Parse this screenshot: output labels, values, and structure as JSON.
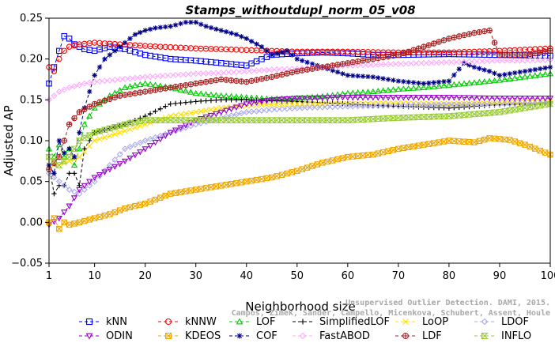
{
  "chart_data": {
    "type": "line",
    "title": "Stamps_withoutdupl_norm_05_v08",
    "xlabel": "Neighborhood size",
    "ylabel": "Adjusted AP",
    "xlim": [
      1,
      100
    ],
    "ylim": [
      -0.05,
      0.25
    ],
    "x_ticks": [
      1,
      10,
      20,
      30,
      40,
      50,
      60,
      70,
      80,
      90,
      100
    ],
    "y_ticks": [
      -0.05,
      0.0,
      0.05,
      0.1,
      0.15,
      0.2,
      0.25
    ],
    "y_tick_labels": [
      "−0.05",
      "0.00",
      "0.05",
      "0.10",
      "0.15",
      "0.20",
      "0.25"
    ],
    "grid": false,
    "legend_position": "bottom",
    "watermark": [
      "Unsupervised Outlier Detection. DAMI, 2015.",
      "Campos, Zimek, Sander, Campello, Micenkova, Schubert, Assent, Houle"
    ],
    "series": [
      {
        "name": "kNN",
        "color": "#0000ff",
        "marker": "square",
        "anchors": [
          [
            1,
            0.17
          ],
          [
            2,
            0.19
          ],
          [
            3,
            0.21
          ],
          [
            4,
            0.228
          ],
          [
            5,
            0.225
          ],
          [
            6,
            0.218
          ],
          [
            8,
            0.212
          ],
          [
            10,
            0.21
          ],
          [
            13,
            0.215
          ],
          [
            16,
            0.212
          ],
          [
            20,
            0.205
          ],
          [
            25,
            0.2
          ],
          [
            30,
            0.198
          ],
          [
            35,
            0.195
          ],
          [
            40,
            0.192
          ],
          [
            45,
            0.205
          ],
          [
            50,
            0.207
          ],
          [
            55,
            0.208
          ],
          [
            60,
            0.207
          ],
          [
            65,
            0.205
          ],
          [
            70,
            0.205
          ],
          [
            80,
            0.206
          ],
          [
            90,
            0.205
          ],
          [
            100,
            0.204
          ]
        ]
      },
      {
        "name": "kNNW",
        "color": "#ff0000",
        "marker": "circle",
        "anchors": [
          [
            1,
            0.19
          ],
          [
            2,
            0.185
          ],
          [
            3,
            0.2
          ],
          [
            4,
            0.21
          ],
          [
            5,
            0.215
          ],
          [
            7,
            0.218
          ],
          [
            10,
            0.22
          ],
          [
            15,
            0.218
          ],
          [
            20,
            0.216
          ],
          [
            30,
            0.213
          ],
          [
            40,
            0.211
          ],
          [
            50,
            0.209
          ],
          [
            60,
            0.209
          ],
          [
            70,
            0.208
          ],
          [
            80,
            0.208
          ],
          [
            90,
            0.21
          ],
          [
            100,
            0.213
          ]
        ]
      },
      {
        "name": "LOF",
        "color": "#00cc00",
        "marker": "triangle",
        "anchors": [
          [
            1,
            0.09
          ],
          [
            2,
            0.08
          ],
          [
            3,
            0.095
          ],
          [
            4,
            0.08
          ],
          [
            5,
            0.09
          ],
          [
            6,
            0.07
          ],
          [
            7,
            0.09
          ],
          [
            8,
            0.12
          ],
          [
            10,
            0.14
          ],
          [
            13,
            0.155
          ],
          [
            16,
            0.165
          ],
          [
            20,
            0.17
          ],
          [
            25,
            0.165
          ],
          [
            30,
            0.158
          ],
          [
            35,
            0.155
          ],
          [
            40,
            0.153
          ],
          [
            45,
            0.151
          ],
          [
            50,
            0.152
          ],
          [
            55,
            0.154
          ],
          [
            60,
            0.158
          ],
          [
            65,
            0.16
          ],
          [
            70,
            0.163
          ],
          [
            75,
            0.165
          ],
          [
            80,
            0.168
          ],
          [
            85,
            0.171
          ],
          [
            90,
            0.174
          ],
          [
            95,
            0.178
          ],
          [
            100,
            0.182
          ]
        ]
      },
      {
        "name": "SimplifiedLOF",
        "color": "#000000",
        "marker": "plus",
        "anchors": [
          [
            1,
            0.07
          ],
          [
            2,
            0.035
          ],
          [
            3,
            0.045
          ],
          [
            4,
            0.045
          ],
          [
            5,
            0.06
          ],
          [
            6,
            0.06
          ],
          [
            7,
            0.045
          ],
          [
            8,
            0.09
          ],
          [
            10,
            0.11
          ],
          [
            13,
            0.115
          ],
          [
            16,
            0.12
          ],
          [
            20,
            0.13
          ],
          [
            25,
            0.145
          ],
          [
            30,
            0.148
          ],
          [
            35,
            0.15
          ],
          [
            40,
            0.15
          ],
          [
            45,
            0.149
          ],
          [
            50,
            0.148
          ],
          [
            60,
            0.145
          ],
          [
            70,
            0.142
          ],
          [
            80,
            0.14
          ],
          [
            90,
            0.144
          ],
          [
            100,
            0.147
          ]
        ]
      },
      {
        "name": "LoOP",
        "color": "#ffdd00",
        "marker": "x",
        "anchors": [
          [
            1,
            0.07
          ],
          [
            3,
            0.07
          ],
          [
            5,
            0.075
          ],
          [
            7,
            0.08
          ],
          [
            10,
            0.1
          ],
          [
            15,
            0.11
          ],
          [
            20,
            0.12
          ],
          [
            25,
            0.13
          ],
          [
            30,
            0.135
          ],
          [
            35,
            0.14
          ],
          [
            40,
            0.143
          ],
          [
            50,
            0.145
          ],
          [
            60,
            0.145
          ],
          [
            70,
            0.146
          ],
          [
            80,
            0.145
          ],
          [
            90,
            0.146
          ],
          [
            100,
            0.148
          ]
        ]
      },
      {
        "name": "LDOF",
        "color": "#aaaaee",
        "marker": "diamond",
        "anchors": [
          [
            1,
            0.06
          ],
          [
            3,
            0.05
          ],
          [
            5,
            0.04
          ],
          [
            7,
            0.035
          ],
          [
            10,
            0.05
          ],
          [
            13,
            0.07
          ],
          [
            16,
            0.09
          ],
          [
            20,
            0.1
          ],
          [
            25,
            0.11
          ],
          [
            30,
            0.12
          ],
          [
            35,
            0.128
          ],
          [
            40,
            0.135
          ],
          [
            45,
            0.138
          ],
          [
            50,
            0.14
          ],
          [
            60,
            0.142
          ],
          [
            70,
            0.143
          ],
          [
            80,
            0.144
          ],
          [
            90,
            0.145
          ],
          [
            100,
            0.146
          ]
        ]
      },
      {
        "name": "ODIN",
        "color": "#9900cc",
        "marker": "triangle-down",
        "anchors": [
          [
            1,
            -0.003
          ],
          [
            3,
            0.005
          ],
          [
            5,
            0.02
          ],
          [
            7,
            0.04
          ],
          [
            10,
            0.055
          ],
          [
            13,
            0.065
          ],
          [
            16,
            0.075
          ],
          [
            20,
            0.09
          ],
          [
            25,
            0.11
          ],
          [
            30,
            0.125
          ],
          [
            35,
            0.135
          ],
          [
            40,
            0.145
          ],
          [
            45,
            0.15
          ],
          [
            50,
            0.152
          ],
          [
            60,
            0.153
          ],
          [
            70,
            0.153
          ],
          [
            80,
            0.153
          ],
          [
            90,
            0.152
          ],
          [
            100,
            0.152
          ]
        ]
      },
      {
        "name": "KDEOS",
        "color": "#f0a800",
        "marker": "square-x",
        "anchors": [
          [
            1,
            0.0
          ],
          [
            2,
            0.005
          ],
          [
            3,
            -0.008
          ],
          [
            4,
            0.0
          ],
          [
            5,
            -0.003
          ],
          [
            7,
            0.0
          ],
          [
            10,
            0.005
          ],
          [
            13,
            0.01
          ],
          [
            16,
            0.017
          ],
          [
            20,
            0.023
          ],
          [
            25,
            0.035
          ],
          [
            30,
            0.04
          ],
          [
            35,
            0.045
          ],
          [
            40,
            0.05
          ],
          [
            45,
            0.055
          ],
          [
            50,
            0.063
          ],
          [
            55,
            0.073
          ],
          [
            60,
            0.08
          ],
          [
            65,
            0.083
          ],
          [
            70,
            0.09
          ],
          [
            75,
            0.095
          ],
          [
            80,
            0.1
          ],
          [
            85,
            0.098
          ],
          [
            88,
            0.103
          ],
          [
            92,
            0.101
          ],
          [
            95,
            0.095
          ],
          [
            100,
            0.083
          ]
        ]
      },
      {
        "name": "COF",
        "color": "#000088",
        "marker": "asterisk",
        "anchors": [
          [
            1,
            0.07
          ],
          [
            2,
            0.06
          ],
          [
            3,
            0.1
          ],
          [
            4,
            0.085
          ],
          [
            5,
            0.09
          ],
          [
            6,
            0.08
          ],
          [
            8,
            0.14
          ],
          [
            10,
            0.18
          ],
          [
            12,
            0.2
          ],
          [
            14,
            0.21
          ],
          [
            16,
            0.22
          ],
          [
            18,
            0.23
          ],
          [
            20,
            0.235
          ],
          [
            22,
            0.238
          ],
          [
            25,
            0.24
          ],
          [
            28,
            0.245
          ],
          [
            30,
            0.245
          ],
          [
            32,
            0.24
          ],
          [
            35,
            0.235
          ],
          [
            38,
            0.23
          ],
          [
            40,
            0.225
          ],
          [
            43,
            0.215
          ],
          [
            45,
            0.205
          ],
          [
            48,
            0.21
          ],
          [
            50,
            0.2
          ],
          [
            55,
            0.19
          ],
          [
            60,
            0.18
          ],
          [
            65,
            0.178
          ],
          [
            70,
            0.173
          ],
          [
            75,
            0.17
          ],
          [
            80,
            0.173
          ],
          [
            83,
            0.195
          ],
          [
            85,
            0.19
          ],
          [
            88,
            0.185
          ],
          [
            90,
            0.18
          ],
          [
            95,
            0.185
          ],
          [
            100,
            0.19
          ]
        ]
      },
      {
        "name": "FastABOD",
        "color": "#ffaaff",
        "marker": "diamond",
        "anchors": [
          [
            1,
            0.15
          ],
          [
            3,
            0.16
          ],
          [
            5,
            0.165
          ],
          [
            8,
            0.17
          ],
          [
            10,
            0.172
          ],
          [
            15,
            0.175
          ],
          [
            20,
            0.178
          ],
          [
            25,
            0.18
          ],
          [
            30,
            0.182
          ],
          [
            35,
            0.183
          ],
          [
            40,
            0.185
          ],
          [
            45,
            0.187
          ],
          [
            50,
            0.188
          ],
          [
            55,
            0.19
          ],
          [
            60,
            0.192
          ],
          [
            65,
            0.193
          ],
          [
            70,
            0.194
          ],
          [
            75,
            0.195
          ],
          [
            80,
            0.196
          ],
          [
            85,
            0.197
          ],
          [
            90,
            0.198
          ],
          [
            95,
            0.198
          ],
          [
            100,
            0.199
          ]
        ]
      },
      {
        "name": "LDF",
        "color": "#aa2222",
        "marker": "circle-plus",
        "anchors": [
          [
            1,
            0.065
          ],
          [
            3,
            0.08
          ],
          [
            5,
            0.12
          ],
          [
            7,
            0.135
          ],
          [
            10,
            0.145
          ],
          [
            15,
            0.155
          ],
          [
            20,
            0.16
          ],
          [
            25,
            0.165
          ],
          [
            30,
            0.17
          ],
          [
            35,
            0.175
          ],
          [
            40,
            0.172
          ],
          [
            45,
            0.178
          ],
          [
            50,
            0.185
          ],
          [
            55,
            0.19
          ],
          [
            60,
            0.195
          ],
          [
            65,
            0.2
          ],
          [
            70,
            0.205
          ],
          [
            75,
            0.215
          ],
          [
            80,
            0.225
          ],
          [
            85,
            0.232
          ],
          [
            88,
            0.235
          ],
          [
            90,
            0.205
          ],
          [
            95,
            0.205
          ],
          [
            100,
            0.21
          ]
        ]
      },
      {
        "name": "INFLO",
        "color": "#99cc33",
        "marker": "hourglass",
        "anchors": [
          [
            1,
            0.08
          ],
          [
            3,
            0.07
          ],
          [
            5,
            0.08
          ],
          [
            7,
            0.1
          ],
          [
            10,
            0.11
          ],
          [
            13,
            0.115
          ],
          [
            16,
            0.12
          ],
          [
            20,
            0.125
          ],
          [
            25,
            0.125
          ],
          [
            30,
            0.125
          ],
          [
            35,
            0.125
          ],
          [
            40,
            0.125
          ],
          [
            50,
            0.125
          ],
          [
            60,
            0.125
          ],
          [
            70,
            0.128
          ],
          [
            80,
            0.13
          ],
          [
            90,
            0.135
          ],
          [
            100,
            0.145
          ]
        ]
      }
    ]
  }
}
